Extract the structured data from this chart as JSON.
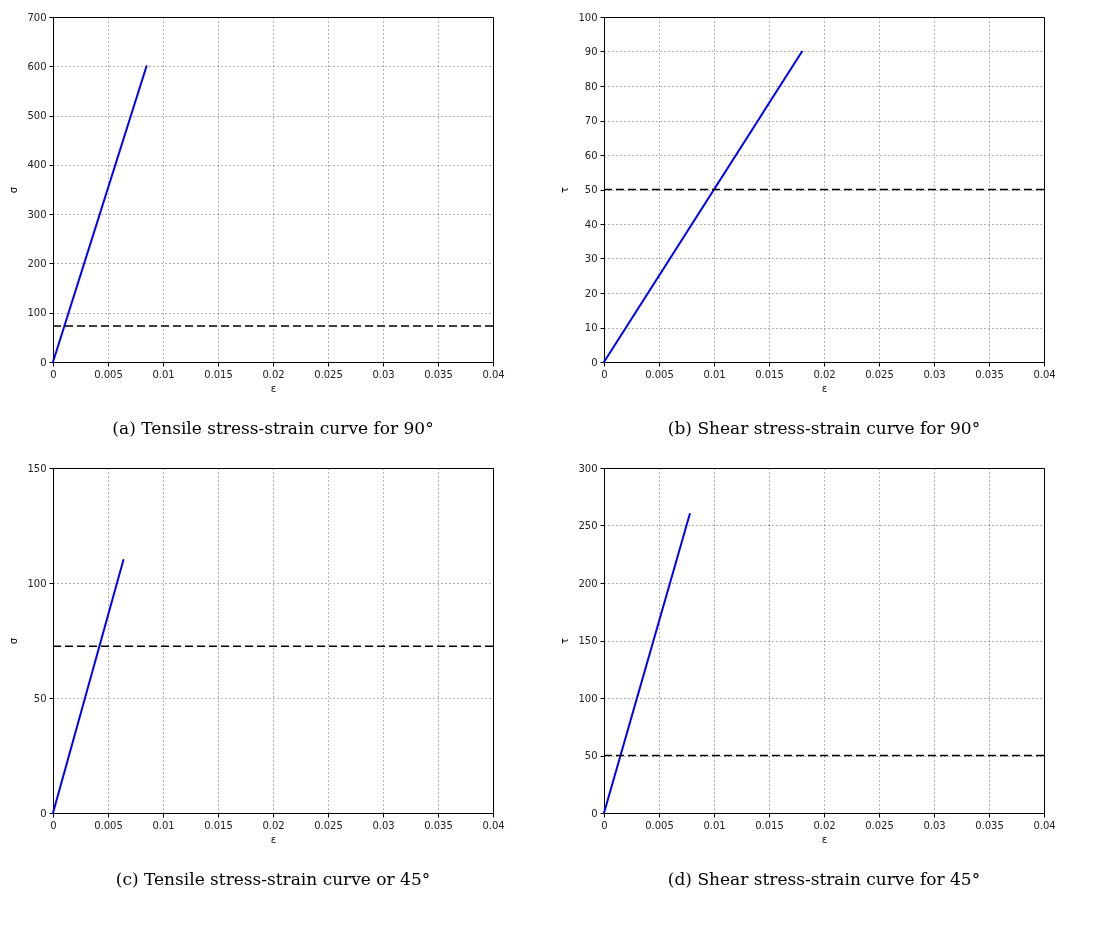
{
  "chart_data": [
    {
      "type": "line",
      "title": "(a) Tensile stress-strain curve for 90°",
      "xlabel": "ε",
      "ylabel": "σ",
      "xlim": [
        0,
        0.04
      ],
      "xticks": [
        0,
        0.005,
        0.01,
        0.015,
        0.02,
        0.025,
        0.03,
        0.035,
        0.04
      ],
      "ylim": [
        0,
        700
      ],
      "yticks": [
        0,
        100,
        200,
        300,
        400,
        500,
        600,
        700
      ],
      "grid": true,
      "line_style": "solid",
      "series": [
        {
          "color": "#0000ff",
          "x": [
            0,
            0.0085
          ],
          "values": [
            0,
            600
          ]
        }
      ],
      "ref_lines": [
        {
          "axis": "y",
          "value": 73,
          "color": "#000000",
          "line_style": "dashed"
        }
      ]
    },
    {
      "type": "line",
      "title": "(b) Shear stress-strain curve for 90°",
      "xlabel": "ε",
      "ylabel": "τ",
      "xlim": [
        0,
        0.04
      ],
      "xticks": [
        0,
        0.005,
        0.01,
        0.015,
        0.02,
        0.025,
        0.03,
        0.035,
        0.04
      ],
      "ylim": [
        0,
        100
      ],
      "yticks": [
        0,
        10,
        20,
        30,
        40,
        50,
        60,
        70,
        80,
        90,
        100
      ],
      "grid": true,
      "line_style": "solid",
      "series": [
        {
          "color": "#0000ff",
          "x": [
            0,
            0.018
          ],
          "values": [
            0,
            90
          ]
        }
      ],
      "ref_lines": [
        {
          "axis": "y",
          "value": 50,
          "color": "#000000",
          "line_style": "dashed"
        }
      ]
    },
    {
      "type": "line",
      "title": "(c) Tensile stress-strain curve or 45°",
      "xlabel": "ε",
      "ylabel": "σ",
      "xlim": [
        0,
        0.04
      ],
      "xticks": [
        0,
        0.005,
        0.01,
        0.015,
        0.02,
        0.025,
        0.03,
        0.035,
        0.04
      ],
      "ylim": [
        0,
        150
      ],
      "yticks": [
        0,
        50,
        100,
        150
      ],
      "grid": true,
      "line_style": "solid",
      "series": [
        {
          "color": "#0000ff",
          "x": [
            0,
            0.0064
          ],
          "values": [
            0,
            110
          ]
        }
      ],
      "ref_lines": [
        {
          "axis": "y",
          "value": 72.5,
          "color": "#000000",
          "line_style": "dashed"
        }
      ]
    },
    {
      "type": "line",
      "title": "(d) Shear stress-strain curve for 45°",
      "xlabel": "ε",
      "ylabel": "τ",
      "xlim": [
        0,
        0.04
      ],
      "xticks": [
        0,
        0.005,
        0.01,
        0.015,
        0.02,
        0.025,
        0.03,
        0.035,
        0.04
      ],
      "ylim": [
        0,
        300
      ],
      "yticks": [
        0,
        50,
        100,
        150,
        200,
        250,
        300
      ],
      "grid": true,
      "line_style": "solid",
      "series": [
        {
          "color": "#0000ff",
          "x": [
            0,
            0.0078
          ],
          "values": [
            0,
            260
          ]
        }
      ],
      "ref_lines": [
        {
          "axis": "y",
          "value": 50,
          "color": "#000000",
          "line_style": "dashed"
        }
      ]
    }
  ]
}
